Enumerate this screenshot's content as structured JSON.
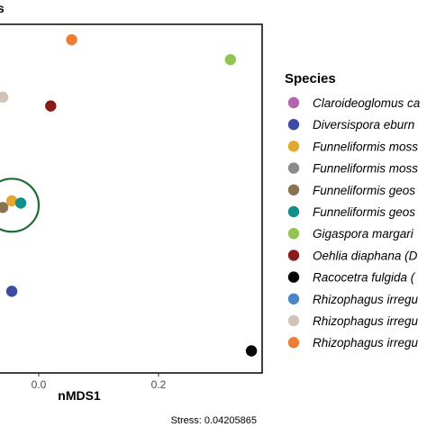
{
  "chart_data": {
    "type": "scatter",
    "title": "",
    "xlabel": "nMDS1",
    "ylabel": "",
    "xlim": [
      -0.065,
      0.38
    ],
    "ylim": [
      -0.52,
      0.27
    ],
    "x_ticks": [
      0.0,
      0.2
    ],
    "x_tick_labels": [
      "0.0",
      "0.2"
    ],
    "legend": {
      "title": "Species",
      "placement": "right"
    },
    "series": [
      {
        "name": "Claroideoglomus ca",
        "color": "#b565b0",
        "points": []
      },
      {
        "name": "Diversispora eburn",
        "color": "#3d4ba0",
        "points": [
          [
            -0.045,
            -0.335
          ]
        ]
      },
      {
        "name": "Funneliformis moss",
        "color": "#e3a92e",
        "points": [
          [
            -0.045,
            -0.13
          ]
        ]
      },
      {
        "name": "Funneliformis moss",
        "color": "#8a8a8a",
        "points": []
      },
      {
        "name": "Funneliformis geos",
        "color": "#8a7150",
        "points": [
          [
            -0.06,
            -0.145
          ]
        ]
      },
      {
        "name": "Funneliformis geos",
        "color": "#138f8b",
        "points": [
          [
            -0.03,
            -0.135
          ]
        ]
      },
      {
        "name": "Gigaspora margari",
        "color": "#93c452",
        "points": [
          [
            0.32,
            0.19
          ]
        ]
      },
      {
        "name": "Oehlia diaphana (D",
        "color": "#8a1a1a",
        "points": [
          [
            0.02,
            0.085
          ]
        ]
      },
      {
        "name": "Racocetra fulgida (",
        "color": "#050505",
        "points": [
          [
            0.355,
            -0.47
          ]
        ]
      },
      {
        "name": "Rhizophagus irregu",
        "color": "#4b86c8",
        "points": []
      },
      {
        "name": "Rhizophagus irregu",
        "color": "#cfc4b5",
        "points": [
          [
            -0.06,
            0.105
          ]
        ]
      },
      {
        "name": "Rhizophagus irregu",
        "color": "#ec7f34",
        "points": [
          [
            0.055,
            0.235
          ]
        ]
      }
    ],
    "annotations": {
      "stress": "Stress: 0.04205865",
      "top_left_fragment": "s",
      "ellipse": {
        "color": "#1f6b36",
        "center": [
          -0.045,
          -0.14
        ],
        "rx": 0.045,
        "ry": 0.06
      }
    },
    "grid": false
  }
}
